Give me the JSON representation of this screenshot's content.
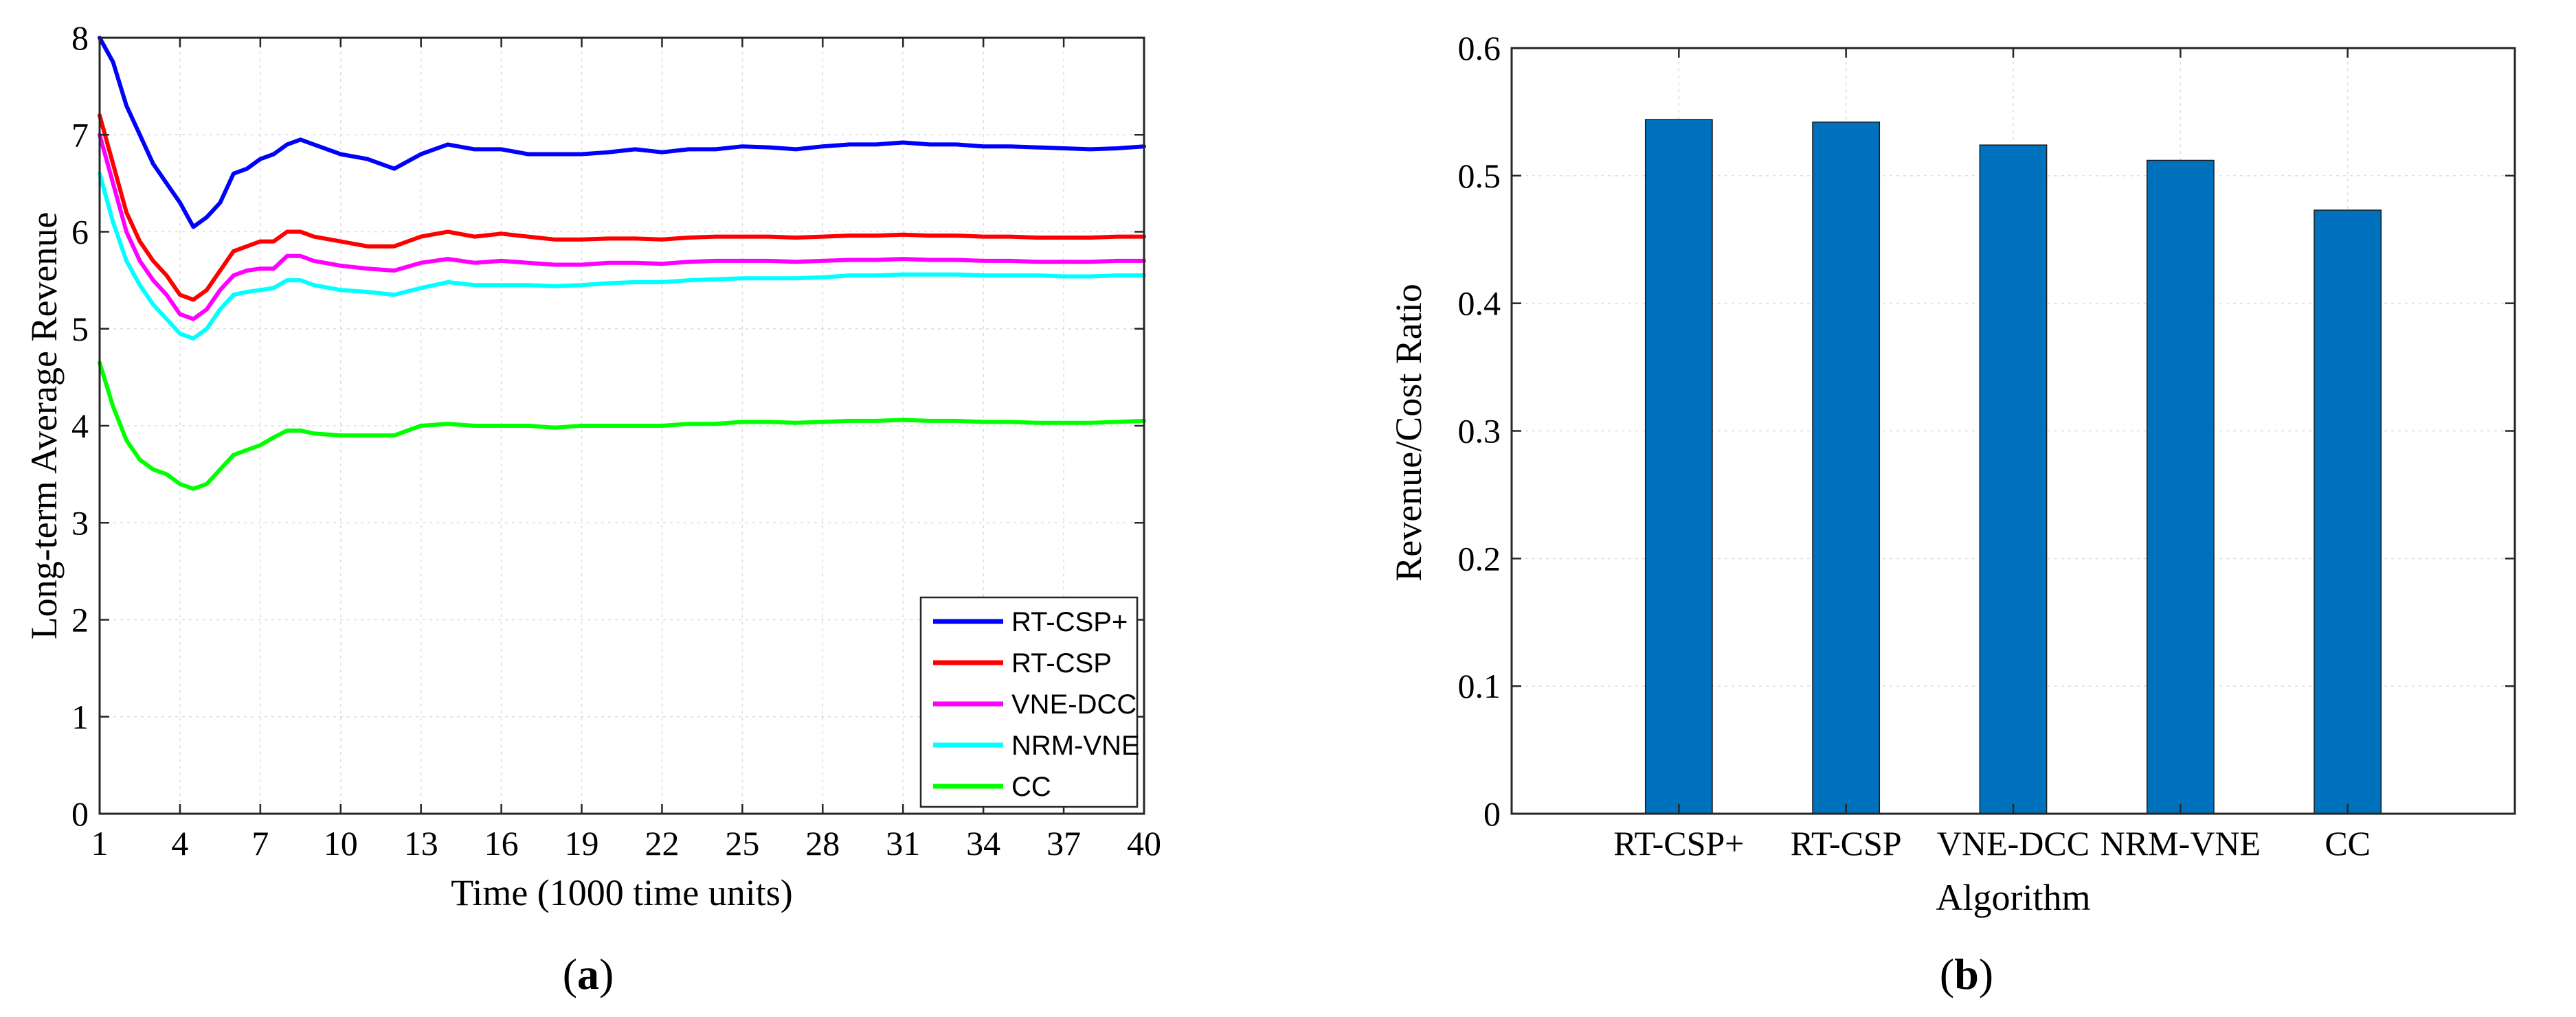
{
  "chart_data": [
    {
      "type": "line",
      "panel_label": "(a)",
      "panel_letter": "a",
      "title": "",
      "xlabel": "Time (1000 time units)",
      "ylabel": "Long-term Average Revenue",
      "xlim": [
        1,
        40
      ],
      "ylim": [
        0,
        8
      ],
      "xticks": [
        1,
        4,
        7,
        10,
        13,
        16,
        19,
        22,
        25,
        28,
        31,
        34,
        37,
        40
      ],
      "yticks": [
        0,
        1,
        2,
        3,
        4,
        5,
        6,
        7,
        8
      ],
      "grid": true,
      "legend_location": "bottom-right",
      "series": [
        {
          "name": "RT-CSP+",
          "color": "#0000ff",
          "x": [
            1,
            1.5,
            2,
            2.5,
            3,
            3.5,
            4,
            4.5,
            5,
            5.5,
            6,
            6.5,
            7,
            7.5,
            8,
            8.5,
            9,
            10,
            11,
            12,
            13,
            14,
            15,
            16,
            17,
            18,
            19,
            20,
            21,
            22,
            23,
            24,
            25,
            26,
            27,
            28,
            29,
            30,
            31,
            32,
            33,
            34,
            35,
            36,
            37,
            38,
            39,
            40
          ],
          "values": [
            8.0,
            7.75,
            7.3,
            7.0,
            6.7,
            6.5,
            6.3,
            6.05,
            6.15,
            6.3,
            6.6,
            6.65,
            6.75,
            6.8,
            6.9,
            6.95,
            6.9,
            6.8,
            6.75,
            6.65,
            6.8,
            6.9,
            6.85,
            6.85,
            6.8,
            6.8,
            6.8,
            6.82,
            6.85,
            6.82,
            6.85,
            6.85,
            6.88,
            6.87,
            6.85,
            6.88,
            6.9,
            6.9,
            6.92,
            6.9,
            6.9,
            6.88,
            6.88,
            6.87,
            6.86,
            6.85,
            6.86,
            6.88
          ]
        },
        {
          "name": "RT-CSP",
          "color": "#ff0000",
          "x": [
            1,
            1.5,
            2,
            2.5,
            3,
            3.5,
            4,
            4.5,
            5,
            5.5,
            6,
            6.5,
            7,
            7.5,
            8,
            8.5,
            9,
            10,
            11,
            12,
            13,
            14,
            15,
            16,
            17,
            18,
            19,
            20,
            21,
            22,
            23,
            24,
            25,
            26,
            27,
            28,
            29,
            30,
            31,
            32,
            33,
            34,
            35,
            36,
            37,
            38,
            39,
            40
          ],
          "values": [
            7.2,
            6.7,
            6.2,
            5.9,
            5.7,
            5.55,
            5.35,
            5.3,
            5.4,
            5.6,
            5.8,
            5.85,
            5.9,
            5.9,
            6.0,
            6.0,
            5.95,
            5.9,
            5.85,
            5.85,
            5.95,
            6.0,
            5.95,
            5.98,
            5.95,
            5.92,
            5.92,
            5.93,
            5.93,
            5.92,
            5.94,
            5.95,
            5.95,
            5.95,
            5.94,
            5.95,
            5.96,
            5.96,
            5.97,
            5.96,
            5.96,
            5.95,
            5.95,
            5.94,
            5.94,
            5.94,
            5.95,
            5.95
          ]
        },
        {
          "name": "VNE-DCC",
          "color": "#ff00ff",
          "x": [
            1,
            1.5,
            2,
            2.5,
            3,
            3.5,
            4,
            4.5,
            5,
            5.5,
            6,
            6.5,
            7,
            7.5,
            8,
            8.5,
            9,
            10,
            11,
            12,
            13,
            14,
            15,
            16,
            17,
            18,
            19,
            20,
            21,
            22,
            23,
            24,
            25,
            26,
            27,
            28,
            29,
            30,
            31,
            32,
            33,
            34,
            35,
            36,
            37,
            38,
            39,
            40
          ],
          "values": [
            7.0,
            6.5,
            6.0,
            5.7,
            5.5,
            5.35,
            5.15,
            5.1,
            5.2,
            5.4,
            5.55,
            5.6,
            5.62,
            5.62,
            5.75,
            5.75,
            5.7,
            5.65,
            5.62,
            5.6,
            5.68,
            5.72,
            5.68,
            5.7,
            5.68,
            5.66,
            5.66,
            5.68,
            5.68,
            5.67,
            5.69,
            5.7,
            5.7,
            5.7,
            5.69,
            5.7,
            5.71,
            5.71,
            5.72,
            5.71,
            5.71,
            5.7,
            5.7,
            5.69,
            5.69,
            5.69,
            5.7,
            5.7
          ]
        },
        {
          "name": "NRM-VNE",
          "color": "#00ffff",
          "x": [
            1,
            1.5,
            2,
            2.5,
            3,
            3.5,
            4,
            4.5,
            5,
            5.5,
            6,
            6.5,
            7,
            7.5,
            8,
            8.5,
            9,
            10,
            11,
            12,
            13,
            14,
            15,
            16,
            17,
            18,
            19,
            20,
            21,
            22,
            23,
            24,
            25,
            26,
            27,
            28,
            29,
            30,
            31,
            32,
            33,
            34,
            35,
            36,
            37,
            38,
            39,
            40
          ],
          "values": [
            6.6,
            6.1,
            5.7,
            5.45,
            5.25,
            5.1,
            4.95,
            4.9,
            5.0,
            5.2,
            5.35,
            5.38,
            5.4,
            5.42,
            5.5,
            5.5,
            5.45,
            5.4,
            5.38,
            5.35,
            5.42,
            5.48,
            5.45,
            5.45,
            5.45,
            5.44,
            5.45,
            5.47,
            5.48,
            5.48,
            5.5,
            5.51,
            5.52,
            5.52,
            5.52,
            5.53,
            5.55,
            5.55,
            5.56,
            5.56,
            5.56,
            5.55,
            5.55,
            5.55,
            5.54,
            5.54,
            5.55,
            5.55
          ]
        },
        {
          "name": "CC",
          "color": "#00ff00",
          "x": [
            1,
            1.5,
            2,
            2.5,
            3,
            3.5,
            4,
            4.5,
            5,
            5.5,
            6,
            6.5,
            7,
            7.5,
            8,
            8.5,
            9,
            10,
            11,
            12,
            13,
            14,
            15,
            16,
            17,
            18,
            19,
            20,
            21,
            22,
            23,
            24,
            25,
            26,
            27,
            28,
            29,
            30,
            31,
            32,
            33,
            34,
            35,
            36,
            37,
            38,
            39,
            40
          ],
          "values": [
            4.65,
            4.2,
            3.85,
            3.65,
            3.55,
            3.5,
            3.4,
            3.35,
            3.4,
            3.55,
            3.7,
            3.75,
            3.8,
            3.88,
            3.95,
            3.95,
            3.92,
            3.9,
            3.9,
            3.9,
            4.0,
            4.02,
            4.0,
            4.0,
            4.0,
            3.98,
            4.0,
            4.0,
            4.0,
            4.0,
            4.02,
            4.02,
            4.04,
            4.04,
            4.03,
            4.04,
            4.05,
            4.05,
            4.06,
            4.05,
            4.05,
            4.04,
            4.04,
            4.03,
            4.03,
            4.03,
            4.04,
            4.05
          ]
        }
      ]
    },
    {
      "type": "bar",
      "panel_label": "(b)",
      "panel_letter": "b",
      "title": "",
      "xlabel": "Algorithm",
      "ylabel": "Revenue/Cost Ratio",
      "ylim": [
        0,
        0.6
      ],
      "yticks": [
        0,
        0.1,
        0.2,
        0.3,
        0.4,
        0.5,
        0.6
      ],
      "ytick_labels": [
        "0",
        "0.1",
        "0.2",
        "0.3",
        "0.4",
        "0.5",
        "0.6"
      ],
      "grid": true,
      "bar_color": "#0072bd",
      "categories": [
        "RT-CSP+",
        "RT-CSP",
        "VNE-DCC",
        "NRM-VNE",
        "CC"
      ],
      "values": [
        0.544,
        0.542,
        0.524,
        0.512,
        0.473
      ]
    }
  ]
}
